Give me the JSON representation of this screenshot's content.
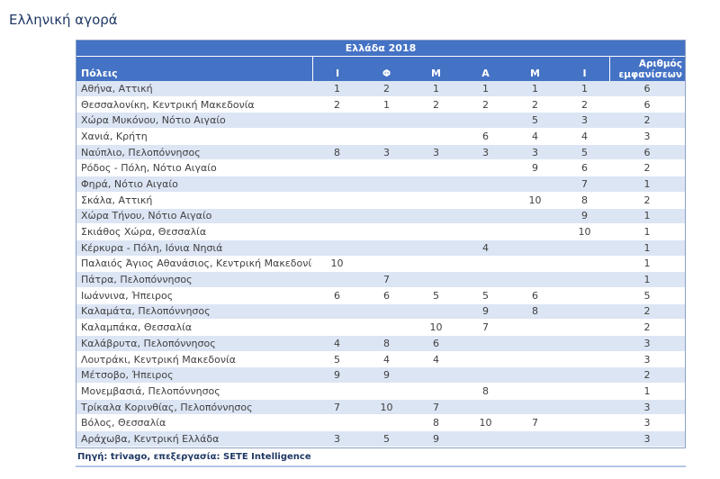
{
  "page": {
    "title": "Ελληνική αγορά"
  },
  "table": {
    "header": "Ελλάδα 2018",
    "columns": {
      "cities": "Πόλεις",
      "months": [
        "Ι",
        "Φ",
        "Μ",
        "Α",
        "Μ",
        "Ι"
      ],
      "count": "Αριθμός εμφανίσεων"
    },
    "rows": [
      {
        "city": "Αθήνα, Αττική",
        "values": [
          "1",
          "2",
          "1",
          "1",
          "1",
          "1"
        ],
        "count": "6"
      },
      {
        "city": "Θεσσαλονίκη, Κεντρική Μακεδονία",
        "values": [
          "2",
          "1",
          "2",
          "2",
          "2",
          "2"
        ],
        "count": "6"
      },
      {
        "city": "Χώρα Μυκόνου, Νότιο Αιγαίο",
        "values": [
          "",
          "",
          "",
          "",
          "5",
          "3"
        ],
        "count": "2"
      },
      {
        "city": "Χανιά, Κρήτη",
        "values": [
          "",
          "",
          "",
          "6",
          "4",
          "4"
        ],
        "count": "3"
      },
      {
        "city": "Ναύπλιο, Πελοπόννησος",
        "values": [
          "8",
          "3",
          "3",
          "3",
          "3",
          "5"
        ],
        "count": "6"
      },
      {
        "city": "Ρόδος - Πόλη, Νότιο Αιγαίο",
        "values": [
          "",
          "",
          "",
          "",
          "9",
          "6"
        ],
        "count": "2"
      },
      {
        "city": "Φηρά, Νότιο Αιγαίο",
        "values": [
          "",
          "",
          "",
          "",
          "",
          "7"
        ],
        "count": "1"
      },
      {
        "city": "Σκάλα, Αττική",
        "values": [
          "",
          "",
          "",
          "",
          "10",
          "8"
        ],
        "count": "2"
      },
      {
        "city": "Χώρα Τήνου, Νότιο Αιγαίο",
        "values": [
          "",
          "",
          "",
          "",
          "",
          "9"
        ],
        "count": "1"
      },
      {
        "city": "Σκιάθος Χώρα, Θεσσαλία",
        "values": [
          "",
          "",
          "",
          "",
          "",
          "10"
        ],
        "count": "1"
      },
      {
        "city": "Κέρκυρα - Πόλη, Ιόνια Νησιά",
        "values": [
          "",
          "",
          "",
          "4",
          "",
          ""
        ],
        "count": "1"
      },
      {
        "city": "Παλαιός Άγιος Αθανάσιος, Κεντρική Μακεδονία",
        "values": [
          "10",
          "",
          "",
          "",
          "",
          ""
        ],
        "count": "1"
      },
      {
        "city": "Πάτρα, Πελοπόννησος",
        "values": [
          "",
          "7",
          "",
          "",
          "",
          ""
        ],
        "count": "1"
      },
      {
        "city": "Ιωάννινα, Ήπειρος",
        "values": [
          "6",
          "6",
          "5",
          "5",
          "6",
          ""
        ],
        "count": "5"
      },
      {
        "city": "Καλαμάτα, Πελοπόννησος",
        "values": [
          "",
          "",
          "",
          "9",
          "8",
          ""
        ],
        "count": "2"
      },
      {
        "city": "Καλαμπάκα, Θεσσαλία",
        "values": [
          "",
          "",
          "10",
          "7",
          "",
          ""
        ],
        "count": "2"
      },
      {
        "city": "Καλάβρυτα, Πελοπόννησος",
        "values": [
          "4",
          "8",
          "6",
          "",
          "",
          ""
        ],
        "count": "3"
      },
      {
        "city": "Λουτράκι, Κεντρική Μακεδονία",
        "values": [
          "5",
          "4",
          "4",
          "",
          "",
          ""
        ],
        "count": "3"
      },
      {
        "city": "Μέτσοβο, Ήπειρος",
        "values": [
          "9",
          "9",
          "",
          "",
          "",
          ""
        ],
        "count": "2"
      },
      {
        "city": "Μονεμβασιά, Πελοπόννησος",
        "values": [
          "",
          "",
          "",
          "8",
          "",
          ""
        ],
        "count": "1"
      },
      {
        "city": "Τρίκαλα Κορινθίας, Πελοπόννησος",
        "values": [
          "7",
          "10",
          "7",
          "",
          "",
          ""
        ],
        "count": "3"
      },
      {
        "city": "Βόλος, Θεσσαλία",
        "values": [
          "",
          "",
          "8",
          "10",
          "7",
          ""
        ],
        "count": "3"
      },
      {
        "city": "Αράχωβα, Κεντρική Ελλάδα",
        "values": [
          "3",
          "5",
          "9",
          "",
          "",
          ""
        ],
        "count": "3"
      }
    ]
  },
  "footer": {
    "source": "Πηγή: trivago, επεξεργασία: SETE Intelligence"
  },
  "colors": {
    "header_bg": "#4472C4",
    "band_row": "#DCE5F4",
    "accent_text": "#1F3864",
    "footer_rule": "#B4C6E7"
  }
}
